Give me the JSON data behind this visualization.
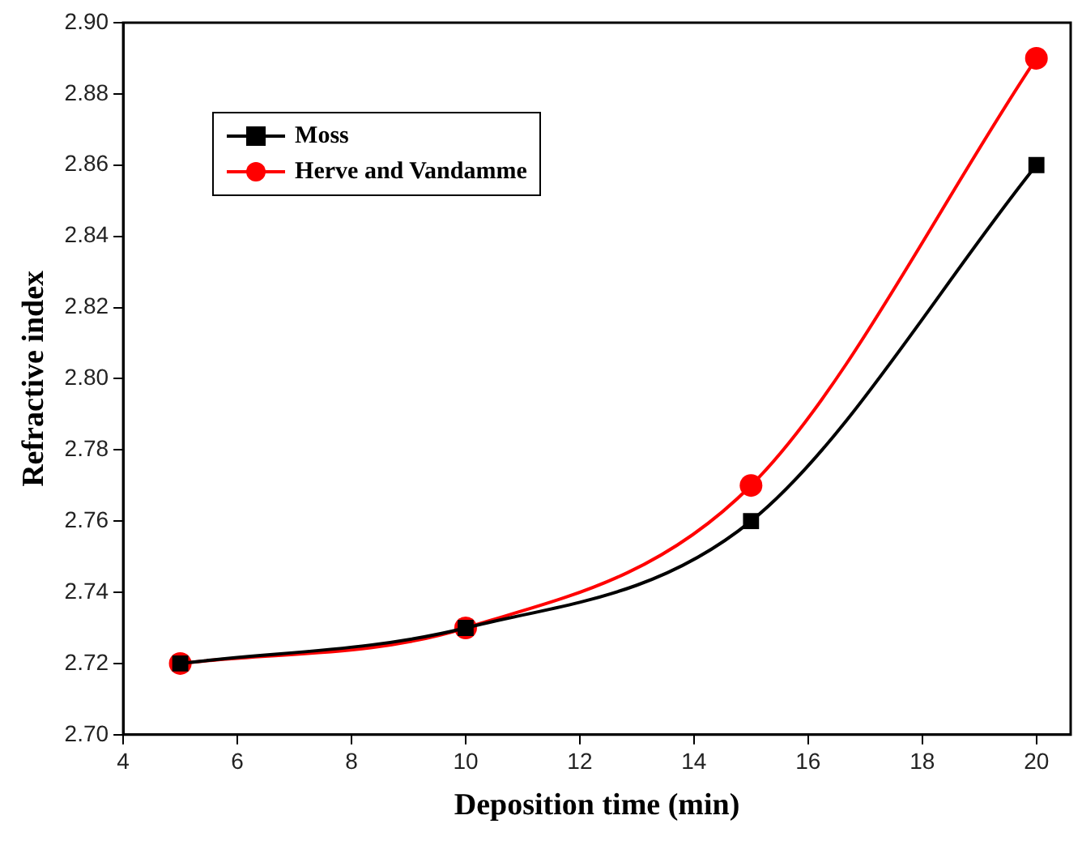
{
  "chart_data": {
    "type": "line",
    "xlabel": "Deposition time (min)",
    "ylabel": "Refractive index",
    "x": [
      5,
      10,
      15,
      20
    ],
    "series": [
      {
        "name": "Moss",
        "color": "#000000",
        "marker": "square",
        "values": [
          2.72,
          2.73,
          2.76,
          2.86
        ]
      },
      {
        "name": "Herve and Vandamme",
        "color": "#ff0000",
        "marker": "circle",
        "values": [
          2.72,
          2.73,
          2.77,
          2.89
        ]
      }
    ],
    "xlim": [
      4,
      20.6
    ],
    "xticks": [
      4,
      6,
      8,
      10,
      12,
      14,
      16,
      18,
      20
    ],
    "ylim": [
      2.7,
      2.9
    ],
    "yticks": [
      {
        "value": 2.7,
        "label": "2.70"
      },
      {
        "value": 2.72,
        "label": "2.72"
      },
      {
        "value": 2.74,
        "label": "2.74"
      },
      {
        "value": 2.76,
        "label": "2.76"
      },
      {
        "value": 2.78,
        "label": "2.78"
      },
      {
        "value": 2.8,
        "label": "2.80"
      },
      {
        "value": 2.82,
        "label": "2.82"
      },
      {
        "value": 2.84,
        "label": "2.84"
      },
      {
        "value": 2.86,
        "label": "2.86"
      },
      {
        "value": 2.88,
        "label": "2.88"
      },
      {
        "value": 2.9,
        "label": "2.90"
      }
    ],
    "grid": false,
    "legend": "top left",
    "line_style": "solid"
  }
}
